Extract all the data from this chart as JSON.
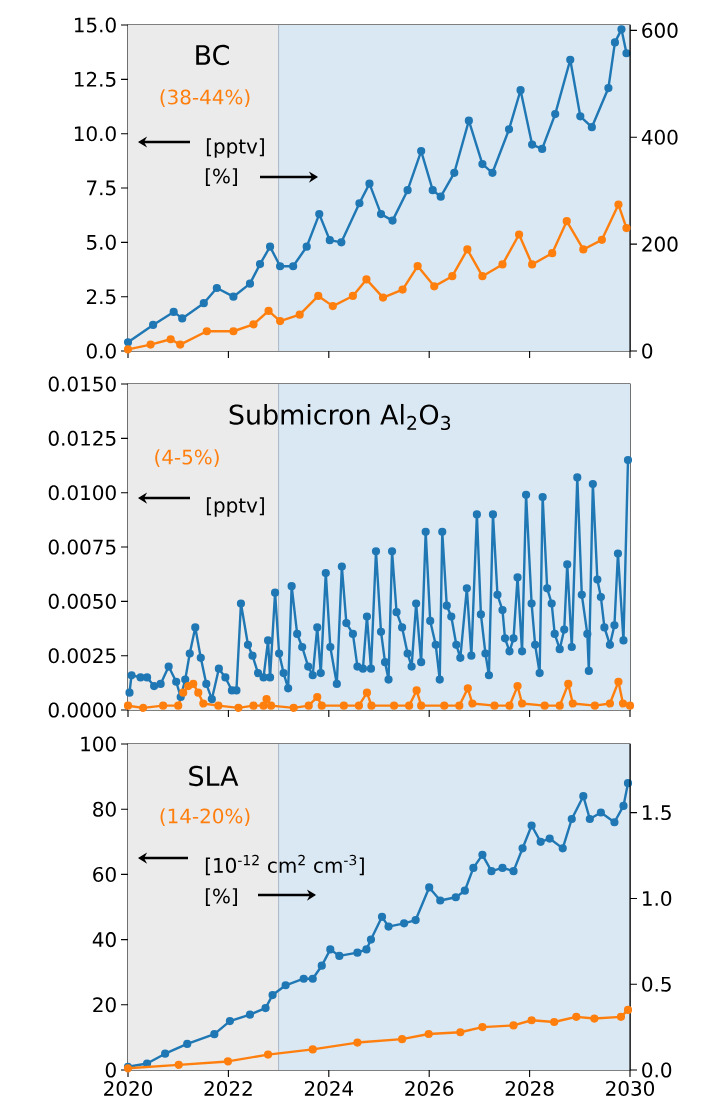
{
  "chart_data": [
    {
      "type": "line",
      "title": "BC",
      "ylabel": "[pptv]",
      "annotations": [
        "(38-44%)",
        "[%]"
      ],
      "marker": "circle",
      "line_style": "solid",
      "tick_labels": "y",
      "xlim": [
        2020,
        2030
      ],
      "xticks": [
        2020,
        2022,
        2024,
        2026,
        2028,
        2030
      ],
      "ylim": [
        0,
        15
      ],
      "yticks": [
        {
          "value": 0,
          "label": "0.0"
        },
        {
          "value": 2.5,
          "label": "2.5"
        },
        {
          "value": 5,
          "label": "5.0"
        },
        {
          "value": 7.5,
          "label": "7.5"
        },
        {
          "value": 10,
          "label": "10.0"
        },
        {
          "value": 12.5,
          "label": "12.5"
        },
        {
          "value": 15,
          "label": "15.0"
        }
      ],
      "y2lim": [
        0,
        610
      ],
      "y2ticks": [
        0,
        200,
        400,
        600
      ],
      "bands": [
        {
          "axis": "x",
          "from": 2020,
          "to": 2023,
          "color": "#ebebeb"
        },
        {
          "axis": "x",
          "from": 2023,
          "to": 2030,
          "color": "#dae8f4"
        }
      ],
      "ref_lines": [
        {
          "axis": "x",
          "value": 2023,
          "color": "#a8b8c8"
        }
      ],
      "series": [
        {
          "color": "#1f77b4",
          "x": [
            2020.0,
            2020.5,
            2020.91,
            2021.08,
            2021.51,
            2021.77,
            2022.1,
            2022.43,
            2022.63,
            2022.83,
            2023.03,
            2023.29,
            2023.56,
            2023.81,
            2024.02,
            2024.25,
            2024.61,
            2024.81,
            2025.04,
            2025.27,
            2025.57,
            2025.84,
            2026.07,
            2026.23,
            2026.5,
            2026.79,
            2027.06,
            2027.26,
            2027.59,
            2027.82,
            2028.05,
            2028.25,
            2028.51,
            2028.81,
            2029.01,
            2029.24,
            2029.57,
            2029.7,
            2029.83,
            2029.93
          ],
          "values": [
            0.4,
            1.2,
            1.8,
            1.5,
            2.2,
            2.9,
            2.5,
            3.1,
            4.0,
            4.8,
            3.9,
            3.9,
            4.8,
            6.3,
            5.1,
            5.0,
            6.8,
            7.7,
            6.3,
            6.0,
            7.4,
            9.2,
            7.4,
            7.1,
            8.2,
            10.6,
            8.6,
            8.2,
            10.2,
            12.0,
            9.5,
            9.3,
            10.9,
            13.4,
            10.8,
            10.3,
            12.1,
            14.2,
            14.8,
            13.7
          ]
        },
        {
          "color": "#ff7f0e",
          "axis": "y2",
          "x": [
            2020.0,
            2020.45,
            2020.85,
            2021.04,
            2021.57,
            2022.1,
            2022.5,
            2022.8,
            2023.03,
            2023.42,
            2023.79,
            2024.08,
            2024.48,
            2024.75,
            2025.08,
            2025.47,
            2025.77,
            2026.1,
            2026.46,
            2026.76,
            2027.06,
            2027.46,
            2027.79,
            2028.05,
            2028.45,
            2028.74,
            2029.07,
            2029.44,
            2029.77,
            2029.93
          ],
          "values": [
            3,
            12,
            22,
            12,
            37,
            37,
            50,
            75,
            56,
            68,
            103,
            84,
            103,
            134,
            100,
            115,
            159,
            121,
            140,
            190,
            140,
            162,
            218,
            162,
            183,
            243,
            190,
            208,
            274,
            230
          ]
        }
      ]
    },
    {
      "type": "line",
      "title": "Submicron Al$_{2}$O$_{3}$",
      "ylabel": "[pptv]",
      "annotations": [
        "(4-5%)"
      ],
      "marker": "circle",
      "line_style": "solid",
      "tick_labels": "y",
      "xlim": [
        2020,
        2030
      ],
      "xticks": [
        2020,
        2022,
        2024,
        2026,
        2028,
        2030
      ],
      "ylim": [
        0,
        0.015
      ],
      "yticks": [
        {
          "value": 0,
          "label": "0.0000"
        },
        {
          "value": 0.0025,
          "label": "0.0025"
        },
        {
          "value": 0.005,
          "label": "0.0050"
        },
        {
          "value": 0.0075,
          "label": "0.0075"
        },
        {
          "value": 0.01,
          "label": "0.0100"
        },
        {
          "value": 0.0125,
          "label": "0.0125"
        },
        {
          "value": 0.015,
          "label": "0.0150"
        }
      ],
      "bands": [
        {
          "axis": "x",
          "from": 2020,
          "to": 2023,
          "color": "#ebebeb"
        },
        {
          "axis": "x",
          "from": 2023,
          "to": 2030,
          "color": "#dae8f4"
        }
      ],
      "ref_lines": [
        {
          "axis": "x",
          "value": 2023,
          "color": "#a8b8c8"
        }
      ],
      "series": [
        {
          "color": "#1f77b4",
          "x": [
            2020.03,
            2020.07,
            2020.25,
            2020.38,
            2020.52,
            2020.65,
            2020.81,
            2020.96,
            2021.05,
            2021.14,
            2021.23,
            2021.34,
            2021.45,
            2021.56,
            2021.67,
            2021.81,
            2021.94,
            2022.07,
            2022.16,
            2022.25,
            2022.39,
            2022.48,
            2022.59,
            2022.7,
            2022.79,
            2022.83,
            2022.93,
            2023.01,
            2023.1,
            2023.19,
            2023.26,
            2023.37,
            2023.47,
            2023.59,
            2023.68,
            2023.77,
            2023.84,
            2023.94,
            2024.03,
            2024.16,
            2024.26,
            2024.35,
            2024.48,
            2024.57,
            2024.68,
            2024.76,
            2024.84,
            2024.94,
            2025.04,
            2025.12,
            2025.19,
            2025.26,
            2025.35,
            2025.46,
            2025.57,
            2025.65,
            2025.74,
            2025.84,
            2025.93,
            2026.02,
            2026.13,
            2026.21,
            2026.26,
            2026.35,
            2026.44,
            2026.54,
            2026.62,
            2026.75,
            2026.84,
            2026.95,
            2027.03,
            2027.12,
            2027.19,
            2027.27,
            2027.36,
            2027.46,
            2027.51,
            2027.6,
            2027.68,
            2027.76,
            2027.85,
            2027.93,
            2028.04,
            2028.11,
            2028.2,
            2028.26,
            2028.35,
            2028.44,
            2028.5,
            2028.6,
            2028.69,
            2028.75,
            2028.84,
            2028.95,
            2029.04,
            2029.15,
            2029.18,
            2029.26,
            2029.35,
            2029.42,
            2029.49,
            2029.6,
            2029.69,
            2029.76,
            2029.87,
            2029.96
          ],
          "values": [
            0.0008,
            0.0016,
            0.0015,
            0.0015,
            0.0011,
            0.0012,
            0.002,
            0.0013,
            0.0006,
            0.0014,
            0.0026,
            0.0038,
            0.0024,
            0.0012,
            0.0005,
            0.0019,
            0.0015,
            0.0009,
            0.0009,
            0.0049,
            0.003,
            0.0025,
            0.0017,
            0.0015,
            0.0032,
            0.0015,
            0.0054,
            0.0026,
            0.0017,
            0.001,
            0.0057,
            0.0035,
            0.0029,
            0.002,
            0.0016,
            0.0038,
            0.0017,
            0.0063,
            0.0029,
            0.0012,
            0.0066,
            0.004,
            0.0035,
            0.002,
            0.0019,
            0.0043,
            0.0019,
            0.0073,
            0.0036,
            0.0022,
            0.0014,
            0.0073,
            0.0045,
            0.0038,
            0.0026,
            0.002,
            0.0049,
            0.0022,
            0.0082,
            0.0041,
            0.003,
            0.0014,
            0.0082,
            0.0048,
            0.0043,
            0.003,
            0.0024,
            0.0056,
            0.0025,
            0.009,
            0.0044,
            0.0026,
            0.0016,
            0.009,
            0.0053,
            0.0046,
            0.0033,
            0.0027,
            0.0033,
            0.0061,
            0.0027,
            0.0099,
            0.0049,
            0.003,
            0.0017,
            0.0098,
            0.0056,
            0.0049,
            0.0035,
            0.0028,
            0.0037,
            0.0067,
            0.0029,
            0.0107,
            0.0053,
            0.0035,
            0.0018,
            0.0104,
            0.006,
            0.0052,
            0.0038,
            0.003,
            0.0039,
            0.0072,
            0.0032,
            0.0115
          ]
        },
        {
          "color": "#ff7f0e",
          "x": [
            2020.0,
            2020.3,
            2020.7,
            2021.0,
            2021.1,
            2021.2,
            2021.3,
            2021.4,
            2021.5,
            2021.8,
            2022.2,
            2022.5,
            2022.7,
            2022.76,
            2022.85,
            2023.3,
            2023.6,
            2023.77,
            2023.86,
            2024.3,
            2024.6,
            2024.76,
            2024.85,
            2025.3,
            2025.6,
            2025.75,
            2025.84,
            2026.3,
            2026.6,
            2026.77,
            2026.86,
            2027.3,
            2027.6,
            2027.76,
            2027.85,
            2028.3,
            2028.6,
            2028.77,
            2028.86,
            2029.3,
            2029.6,
            2029.77,
            2029.86,
            2030.0
          ],
          "values": [
            0.0002,
            0.0001,
            0.0002,
            0.0002,
            0.0008,
            0.0011,
            0.0012,
            0.0008,
            0.0003,
            0.0002,
            0.0001,
            0.0002,
            0.0002,
            0.0005,
            0.0002,
            0.0001,
            0.0002,
            0.0006,
            0.0002,
            0.0002,
            0.0002,
            0.0008,
            0.0002,
            0.0002,
            0.0002,
            0.0009,
            0.0002,
            0.0002,
            0.0002,
            0.001,
            0.0003,
            0.0002,
            0.0002,
            0.0011,
            0.0003,
            0.0002,
            0.0002,
            0.0012,
            0.0003,
            0.0002,
            0.0003,
            0.0013,
            0.0003,
            0.0002
          ]
        }
      ]
    },
    {
      "type": "line",
      "title": "SLA",
      "ylabel": "[10$^{-12}$ cm$^{2}$ cm$^{-3}$]",
      "annotations": [
        "(14-20%)",
        "[%]"
      ],
      "marker": "circle",
      "line_style": "solid",
      "xlim": [
        2020,
        2030
      ],
      "xticks": [
        2020,
        2022,
        2024,
        2026,
        2028,
        2030
      ],
      "ylim": [
        0,
        100
      ],
      "yticks": [
        0,
        20,
        40,
        60,
        80,
        100
      ],
      "y2lim": [
        0,
        1.9
      ],
      "y2ticks": [
        {
          "value": 0,
          "label": "0.0"
        },
        {
          "value": 0.5,
          "label": "0.5"
        },
        {
          "value": 1,
          "label": "1.0"
        },
        {
          "value": 1.5,
          "label": "1.5"
        }
      ],
      "bands": [
        {
          "axis": "x",
          "from": 2020,
          "to": 2023,
          "color": "#ebebeb"
        },
        {
          "axis": "x",
          "from": 2023,
          "to": 2030,
          "color": "#dae8f4"
        }
      ],
      "ref_lines": [
        {
          "axis": "x",
          "value": 2023,
          "color": "#a8b8c8"
        }
      ],
      "series": [
        {
          "color": "#1f77b4",
          "x": [
            2020.0,
            2020.38,
            2020.74,
            2021.18,
            2021.72,
            2022.03,
            2022.43,
            2022.74,
            2022.88,
            2023.14,
            2023.5,
            2023.68,
            2023.86,
            2024.03,
            2024.21,
            2024.57,
            2024.75,
            2024.84,
            2025.06,
            2025.19,
            2025.5,
            2025.73,
            2026.0,
            2026.22,
            2026.53,
            2026.71,
            2026.88,
            2027.06,
            2027.24,
            2027.46,
            2027.68,
            2027.86,
            2028.04,
            2028.22,
            2028.4,
            2028.66,
            2028.84,
            2029.07,
            2029.2,
            2029.42,
            2029.69,
            2029.87,
            2029.96
          ],
          "values": [
            1,
            2,
            5,
            8,
            11,
            15,
            17,
            19,
            23,
            26,
            28,
            28,
            32,
            37,
            35,
            36,
            37,
            40,
            47,
            44,
            45,
            46,
            56,
            52,
            53,
            55,
            62,
            66,
            61,
            62,
            61,
            68,
            75,
            70,
            71,
            68,
            77,
            84,
            77,
            79,
            76,
            81,
            88
          ]
        },
        {
          "color": "#ff7f0e",
          "axis": "y2",
          "x": [
            2020.0,
            2021.01,
            2021.99,
            2022.79,
            2023.68,
            2024.57,
            2025.46,
            2025.99,
            2026.62,
            2027.06,
            2027.68,
            2028.04,
            2028.49,
            2028.93,
            2029.29,
            2029.82,
            2029.96
          ],
          "values": [
            0.01,
            0.03,
            0.05,
            0.09,
            0.12,
            0.16,
            0.18,
            0.21,
            0.22,
            0.25,
            0.26,
            0.29,
            0.28,
            0.31,
            0.3,
            0.31,
            0.35
          ]
        }
      ]
    }
  ]
}
